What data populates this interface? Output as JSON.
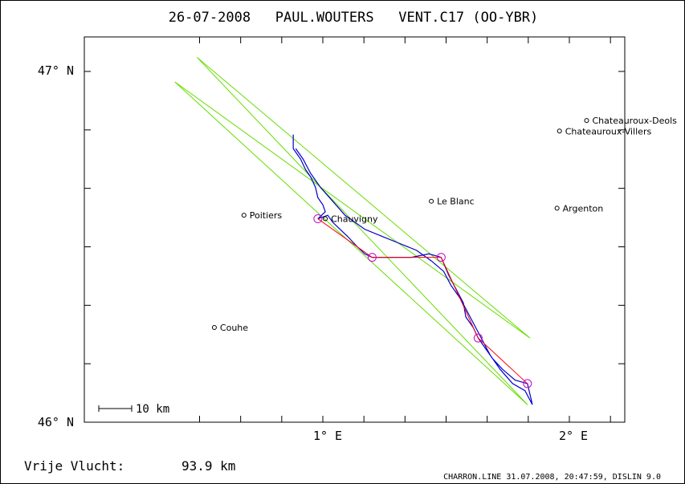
{
  "header": {
    "title": "26-07-2008   PAUL.WOUTERS   VENT.C17 (OO-YBR)"
  },
  "axes": {
    "lat_labels": [
      "47° N",
      "46° N"
    ],
    "lon_labels": [
      "1° E",
      "2° E"
    ]
  },
  "scale_bar": {
    "label": "10 km"
  },
  "places": [
    {
      "name": "Chateauroux-Deols",
      "lon": 2.07,
      "lat": 46.86
    },
    {
      "name": "Chateauroux-Villers",
      "lon": 1.96,
      "lat": 46.83
    },
    {
      "name": "Le Blanc",
      "lon": 1.44,
      "lat": 46.63
    },
    {
      "name": "Argenton",
      "lon": 1.95,
      "lat": 46.61
    },
    {
      "name": "Poitiers",
      "lon": 0.68,
      "lat": 46.59
    },
    {
      "name": "Chauvigny",
      "lon": 1.01,
      "lat": 46.58
    },
    {
      "name": "Couhe",
      "lon": 0.56,
      "lat": 46.27
    }
  ],
  "footer": {
    "distance_label": "Vrije Vlucht:",
    "distance_value": "93.9 km",
    "software": "CHARRON.LINE 31.07.2008, 20:47:59, DISLIN 9.0"
  },
  "colors": {
    "track": "#0000cc",
    "task": "#ff0000",
    "sectors": "#66dd00",
    "turnpoints": "#cc00cc",
    "places": "#000000"
  },
  "turnpoints": [
    {
      "lon": 0.98,
      "lat": 46.58
    },
    {
      "lon": 1.2,
      "lat": 46.47
    },
    {
      "lon": 1.48,
      "lat": 46.47
    },
    {
      "lon": 1.63,
      "lat": 46.24
    },
    {
      "lon": 1.83,
      "lat": 46.11
    }
  ],
  "track": [
    [
      0.88,
      46.82
    ],
    [
      0.88,
      46.78
    ],
    [
      0.91,
      46.75
    ],
    [
      0.93,
      46.72
    ],
    [
      0.95,
      46.7
    ],
    [
      0.97,
      46.67
    ],
    [
      0.98,
      46.64
    ],
    [
      1.0,
      46.62
    ],
    [
      1.01,
      46.6
    ],
    [
      0.98,
      46.58
    ],
    [
      1.02,
      46.59
    ],
    [
      1.04,
      46.57
    ],
    [
      1.07,
      46.55
    ],
    [
      1.1,
      46.53
    ],
    [
      1.14,
      46.5
    ],
    [
      1.17,
      46.48
    ],
    [
      1.2,
      46.47
    ],
    [
      1.28,
      46.47
    ],
    [
      1.36,
      46.47
    ],
    [
      1.43,
      46.48
    ],
    [
      1.48,
      46.47
    ],
    [
      1.51,
      46.42
    ],
    [
      1.54,
      46.38
    ],
    [
      1.57,
      46.34
    ],
    [
      1.58,
      46.3
    ],
    [
      1.61,
      46.27
    ],
    [
      1.63,
      46.24
    ],
    [
      1.66,
      46.21
    ],
    [
      1.69,
      46.18
    ],
    [
      1.73,
      46.15
    ],
    [
      1.78,
      46.12
    ],
    [
      1.83,
      46.11
    ],
    [
      1.85,
      46.05
    ],
    [
      1.82,
      46.09
    ],
    [
      1.77,
      46.11
    ],
    [
      1.72,
      46.15
    ],
    [
      1.68,
      46.19
    ],
    [
      1.65,
      46.23
    ],
    [
      1.62,
      46.27
    ],
    [
      1.59,
      46.31
    ],
    [
      1.56,
      46.35
    ],
    [
      1.52,
      46.39
    ],
    [
      1.49,
      46.43
    ],
    [
      1.44,
      46.46
    ],
    [
      1.38,
      46.49
    ],
    [
      1.31,
      46.51
    ],
    [
      1.24,
      46.53
    ],
    [
      1.17,
      46.55
    ],
    [
      1.09,
      46.59
    ],
    [
      1.04,
      46.63
    ],
    [
      0.99,
      46.67
    ],
    [
      0.95,
      46.71
    ],
    [
      0.92,
      46.75
    ],
    [
      0.89,
      46.78
    ]
  ],
  "sector_lines": [
    [
      [
        0.4,
        46.97
      ],
      [
        1.83,
        46.05
      ]
    ],
    [
      [
        0.4,
        46.97
      ],
      [
        1.84,
        46.24
      ]
    ],
    [
      [
        0.49,
        47.04
      ],
      [
        1.83,
        46.05
      ]
    ],
    [
      [
        0.49,
        47.04
      ],
      [
        1.84,
        46.24
      ]
    ]
  ]
}
